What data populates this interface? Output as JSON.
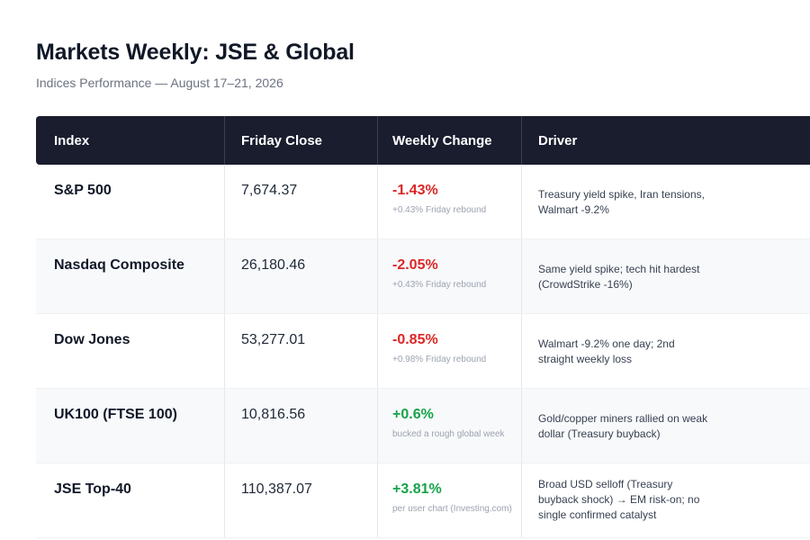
{
  "header": {
    "title": "Markets Weekly: JSE & Global",
    "subtitle": "Indices Performance — August 17–21, 2026"
  },
  "table": {
    "columns": [
      "Index",
      "Friday Close",
      "Weekly Change",
      "Driver"
    ],
    "rows": [
      {
        "index": "S&P 500",
        "close": "7,674.37",
        "change": "-1.43%",
        "direction": "negative",
        "note": "+0.43% Friday rebound",
        "driver": "Treasury yield spike, Iran tensions, Walmart -9.2%"
      },
      {
        "index": "Nasdaq Composite",
        "close": "26,180.46",
        "change": "-2.05%",
        "direction": "negative",
        "note": "+0.43% Friday rebound",
        "driver": "Same yield spike; tech hit hardest (CrowdStrike -16%)"
      },
      {
        "index": "Dow Jones",
        "close": "53,277.01",
        "change": "-0.85%",
        "direction": "negative",
        "note": "+0.98% Friday rebound",
        "driver": "Walmart -9.2% one day; 2nd straight weekly loss"
      },
      {
        "index": "UK100 (FTSE 100)",
        "close": "10,816.56",
        "change": "+0.6%",
        "direction": "positive",
        "note": "bucked a rough global week",
        "driver": "Gold/copper miners rallied on weak dollar (Treasury buyback)"
      },
      {
        "index": "JSE Top-40",
        "close": "110,387.07",
        "change": "+3.81%",
        "direction": "positive",
        "note": "per user chart (Investing.com)",
        "driver": "Broad USD selloff (Treasury buyback shock) → EM risk-on; no single confirmed catalyst"
      }
    ]
  },
  "colors": {
    "header_bg": "#1a1d2e",
    "negative": "#dc2626",
    "positive": "#16a34a"
  }
}
